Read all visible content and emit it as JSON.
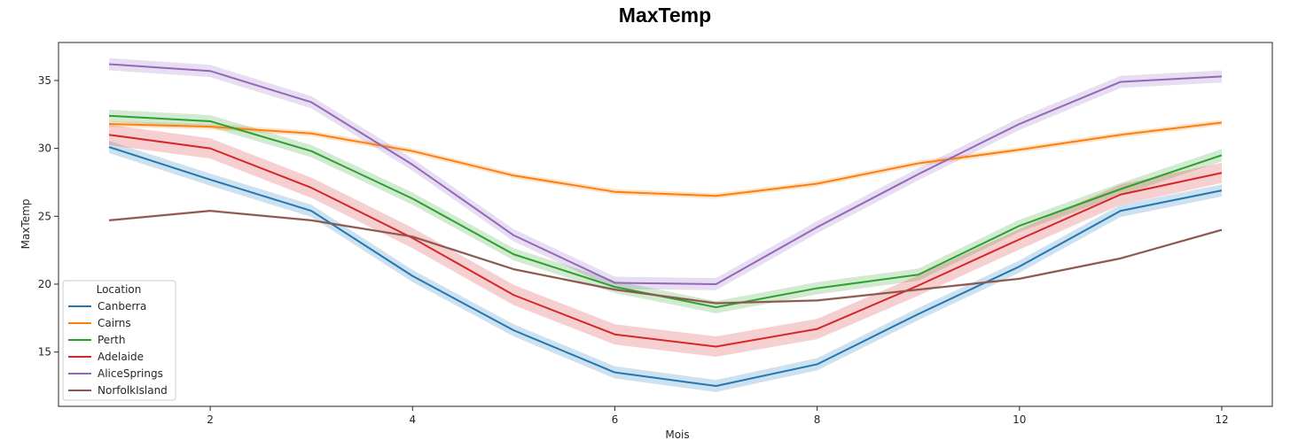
{
  "chart_data": {
    "type": "line",
    "title": "MaxTemp",
    "xlabel": "Mois",
    "ylabel": "MaxTemp",
    "xlim": [
      0.5,
      12.5
    ],
    "ylim": [
      11.0,
      37.8
    ],
    "xticks": [
      2,
      4,
      6,
      8,
      10,
      12
    ],
    "yticks": [
      15,
      20,
      25,
      30,
      35
    ],
    "grid": false,
    "legend": {
      "title": "Location",
      "placement": "lower-left"
    },
    "x": [
      1,
      2,
      3,
      4,
      5,
      6,
      7,
      8,
      9,
      10,
      11,
      12
    ],
    "series": [
      {
        "name": "Canberra",
        "color": "#1f77b4",
        "ci": 0.45,
        "values": [
          30.1,
          27.7,
          25.4,
          20.6,
          16.6,
          13.5,
          12.5,
          14.1,
          17.8,
          21.3,
          25.4,
          26.9
        ]
      },
      {
        "name": "Cairns",
        "color": "#ff7f0e",
        "ci": 0.2,
        "values": [
          31.8,
          31.6,
          31.1,
          29.8,
          28.0,
          26.8,
          26.5,
          27.4,
          28.9,
          29.9,
          31.0,
          31.9
        ]
      },
      {
        "name": "Perth",
        "color": "#2ca02c",
        "ci": 0.45,
        "values": [
          32.4,
          32.0,
          29.8,
          26.3,
          22.2,
          19.8,
          18.3,
          19.7,
          20.7,
          24.3,
          27.0,
          29.5
        ]
      },
      {
        "name": "Adelaide",
        "color": "#d62728",
        "ci": 0.75,
        "values": [
          31.0,
          30.0,
          27.1,
          23.4,
          19.2,
          16.3,
          15.4,
          16.7,
          19.9,
          23.3,
          26.6,
          28.2
        ]
      },
      {
        "name": "AliceSprings",
        "color": "#9467bd",
        "ci": 0.45,
        "values": [
          36.2,
          35.7,
          33.4,
          28.8,
          23.6,
          20.1,
          20.0,
          24.2,
          28.1,
          31.8,
          34.9,
          35.3
        ]
      },
      {
        "name": "NorfolkIsland",
        "color": "#8c564b",
        "ci": 0.1,
        "values": [
          24.7,
          25.4,
          24.7,
          23.5,
          21.1,
          19.6,
          18.6,
          18.8,
          19.6,
          20.4,
          21.9,
          24.0
        ]
      }
    ]
  }
}
